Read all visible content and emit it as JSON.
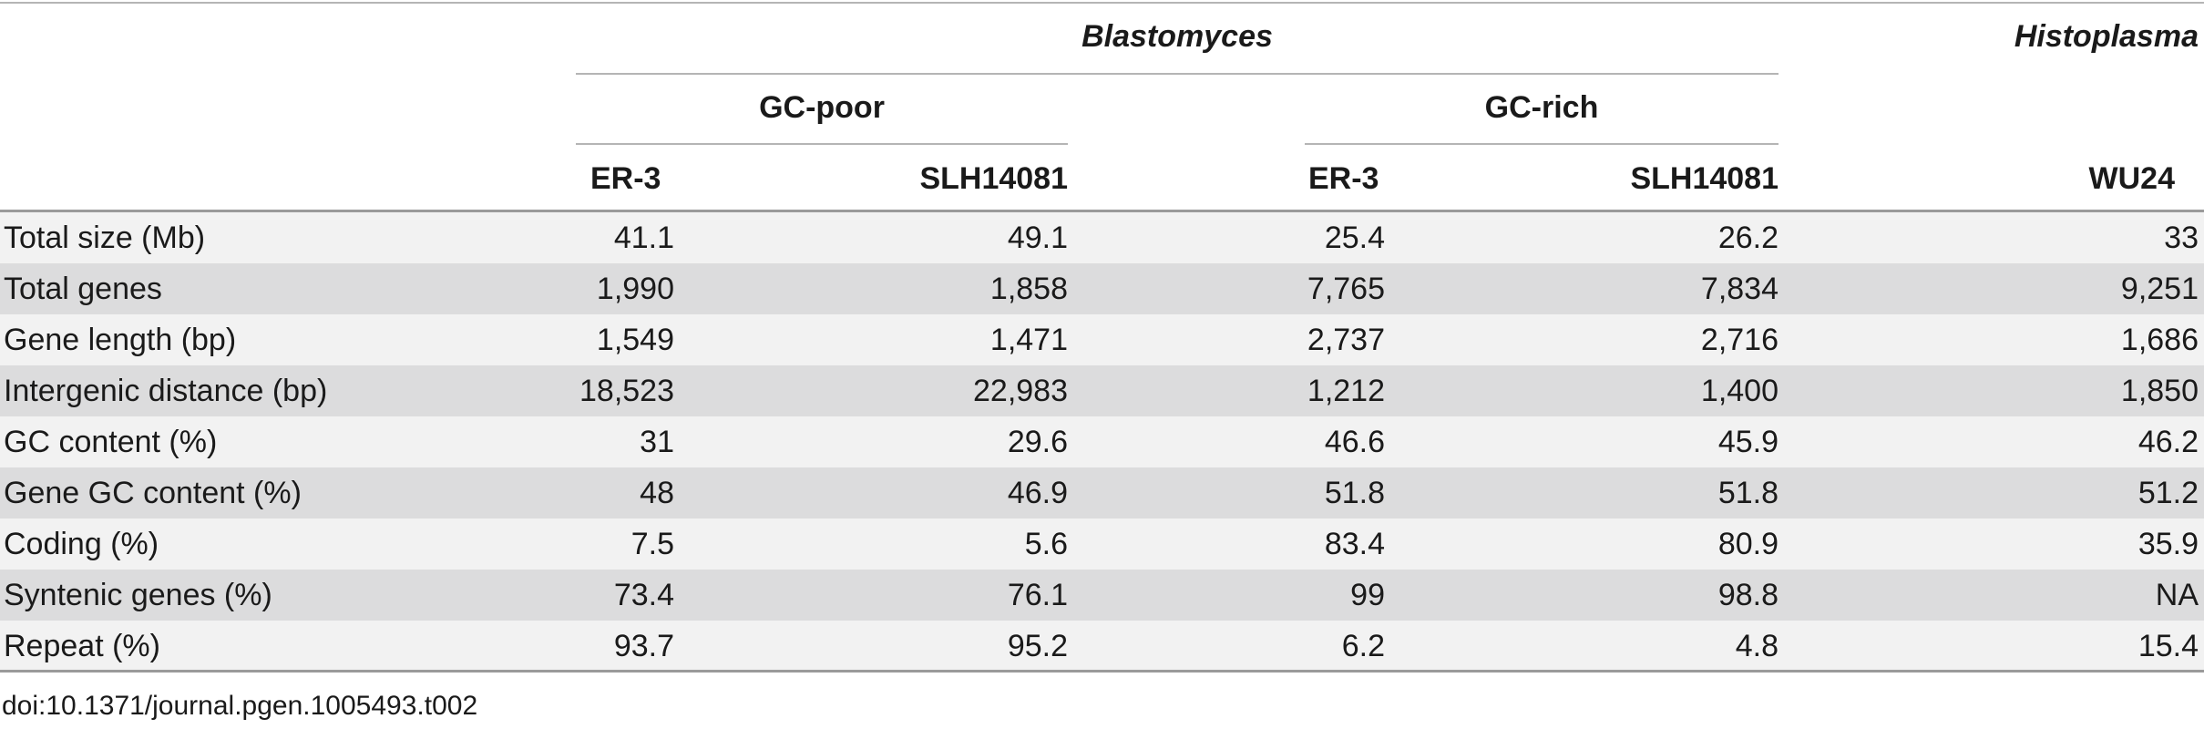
{
  "table": {
    "group_headers": {
      "blastomyces": "Blastomyces",
      "histoplasma": "Histoplasma",
      "gc_poor": "GC-poor",
      "gc_rich": "GC-rich"
    },
    "columns": [
      "ER-3",
      "SLH14081",
      "ER-3",
      "SLH14081",
      "WU24"
    ],
    "rows": [
      {
        "label": "Total size (Mb)",
        "values": [
          "41.1",
          "49.1",
          "25.4",
          "26.2",
          "33"
        ]
      },
      {
        "label": "Total genes",
        "values": [
          "1,990",
          "1,858",
          "7,765",
          "7,834",
          "9,251"
        ]
      },
      {
        "label": "Gene length (bp)",
        "values": [
          "1,549",
          "1,471",
          "2,737",
          "2,716",
          "1,686"
        ]
      },
      {
        "label": "Intergenic distance (bp)",
        "values": [
          "18,523",
          "22,983",
          "1,212",
          "1,400",
          "1,850"
        ]
      },
      {
        "label": "GC content (%)",
        "values": [
          "31",
          "29.6",
          "46.6",
          "45.9",
          "46.2"
        ]
      },
      {
        "label": "Gene GC content (%)",
        "values": [
          "48",
          "46.9",
          "51.8",
          "51.8",
          "51.2"
        ]
      },
      {
        "label": "Coding (%)",
        "values": [
          "7.5",
          "5.6",
          "83.4",
          "80.9",
          "35.9"
        ]
      },
      {
        "label": "Syntenic genes (%)",
        "values": [
          "73.4",
          "76.1",
          "99",
          "98.8",
          "NA"
        ]
      },
      {
        "label": "Repeat (%)",
        "values": [
          "93.7",
          "95.2",
          "6.2",
          "4.8",
          "15.4"
        ]
      }
    ]
  },
  "footer": {
    "doi": "doi:10.1371/journal.pgen.1005493.t002"
  }
}
